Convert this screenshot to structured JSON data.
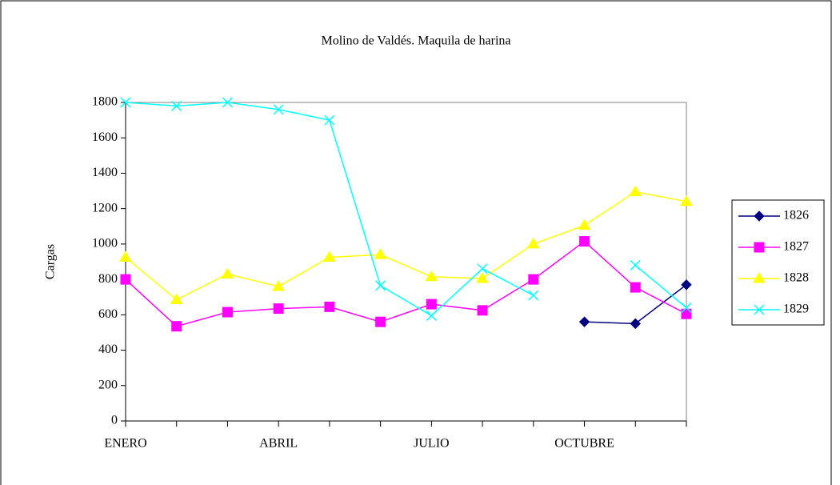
{
  "chart_data": {
    "type": "line",
    "title": "Molino de Valdés. Maquila de harina",
    "y_label": "Cargas",
    "categories": [
      "ENERO",
      null,
      null,
      "ABRIL",
      null,
      null,
      "JULIO",
      null,
      null,
      "OCTUBRE",
      null,
      null
    ],
    "series": [
      {
        "name": "1826",
        "color": "#000080",
        "marker": "diamond",
        "values": [
          null,
          null,
          null,
          null,
          null,
          null,
          null,
          null,
          null,
          560,
          550,
          770
        ]
      },
      {
        "name": "1827",
        "color": "#ff00ff",
        "marker": "square",
        "values": [
          800,
          535,
          615,
          635,
          645,
          560,
          660,
          625,
          800,
          1015,
          755,
          605
        ]
      },
      {
        "name": "1828",
        "color": "#ffff00",
        "marker": "triangle",
        "values": [
          925,
          685,
          830,
          760,
          925,
          940,
          815,
          805,
          1000,
          1105,
          1295,
          1240
        ]
      },
      {
        "name": "1829",
        "color": "#00ffff",
        "marker": "x",
        "values": [
          1800,
          1780,
          1800,
          1760,
          1700,
          765,
          595,
          860,
          710,
          null,
          880,
          640
        ]
      }
    ],
    "ylim": [
      0,
      1800
    ],
    "yticks": [
      0,
      200,
      400,
      600,
      800,
      1000,
      1200,
      1400,
      1600,
      1800
    ],
    "grid": false,
    "legend": "right"
  }
}
